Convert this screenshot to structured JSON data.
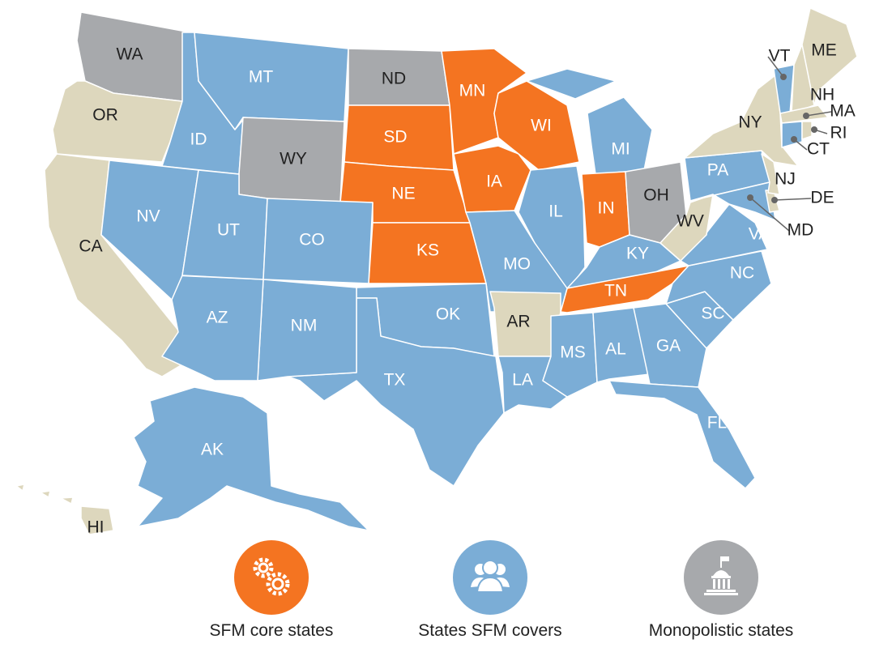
{
  "colors": {
    "core": "#f47421",
    "covers": "#7badd6",
    "monopolistic": "#a7a9ac",
    "other": "#ddd7bd"
  },
  "states": [
    {
      "code": "WA",
      "category": "monopolistic"
    },
    {
      "code": "OR",
      "category": "other"
    },
    {
      "code": "CA",
      "category": "other"
    },
    {
      "code": "ID",
      "category": "covers"
    },
    {
      "code": "MT",
      "category": "covers"
    },
    {
      "code": "WY",
      "category": "monopolistic"
    },
    {
      "code": "ND",
      "category": "monopolistic"
    },
    {
      "code": "SD",
      "category": "core"
    },
    {
      "code": "NE",
      "category": "core"
    },
    {
      "code": "KS",
      "category": "core"
    },
    {
      "code": "MN",
      "category": "core"
    },
    {
      "code": "IA",
      "category": "core"
    },
    {
      "code": "WI",
      "category": "core"
    },
    {
      "code": "MI",
      "category": "covers"
    },
    {
      "code": "IL",
      "category": "covers"
    },
    {
      "code": "IN",
      "category": "core"
    },
    {
      "code": "OH",
      "category": "monopolistic"
    },
    {
      "code": "KY",
      "category": "covers"
    },
    {
      "code": "TN",
      "category": "core"
    },
    {
      "code": "MO",
      "category": "covers"
    },
    {
      "code": "AR",
      "category": "other"
    },
    {
      "code": "OK",
      "category": "covers"
    },
    {
      "code": "TX",
      "category": "covers"
    },
    {
      "code": "NM",
      "category": "covers"
    },
    {
      "code": "AZ",
      "category": "covers"
    },
    {
      "code": "NV",
      "category": "covers"
    },
    {
      "code": "UT",
      "category": "covers"
    },
    {
      "code": "CO",
      "category": "covers"
    },
    {
      "code": "LA",
      "category": "covers"
    },
    {
      "code": "MS",
      "category": "covers"
    },
    {
      "code": "AL",
      "category": "covers"
    },
    {
      "code": "GA",
      "category": "covers"
    },
    {
      "code": "FL",
      "category": "covers"
    },
    {
      "code": "SC",
      "category": "covers"
    },
    {
      "code": "NC",
      "category": "covers"
    },
    {
      "code": "VA",
      "category": "covers"
    },
    {
      "code": "WV",
      "category": "other"
    },
    {
      "code": "PA",
      "category": "covers"
    },
    {
      "code": "MD",
      "category": "covers"
    },
    {
      "code": "DE",
      "category": "other"
    },
    {
      "code": "NJ",
      "category": "other"
    },
    {
      "code": "NY",
      "category": "other"
    },
    {
      "code": "VT",
      "category": "covers"
    },
    {
      "code": "NH",
      "category": "other"
    },
    {
      "code": "ME",
      "category": "other"
    },
    {
      "code": "MA",
      "category": "other"
    },
    {
      "code": "CT",
      "category": "covers"
    },
    {
      "code": "RI",
      "category": "other"
    },
    {
      "code": "AK",
      "category": "covers"
    },
    {
      "code": "HI",
      "category": "other"
    }
  ],
  "legend": [
    {
      "label": "SFM core states",
      "category": "core",
      "icon": "gears-icon"
    },
    {
      "label": "States SFM covers",
      "category": "covers",
      "icon": "people-icon"
    },
    {
      "label": "Monopolistic states",
      "category": "monopolistic",
      "icon": "capitol-building-icon"
    }
  ]
}
